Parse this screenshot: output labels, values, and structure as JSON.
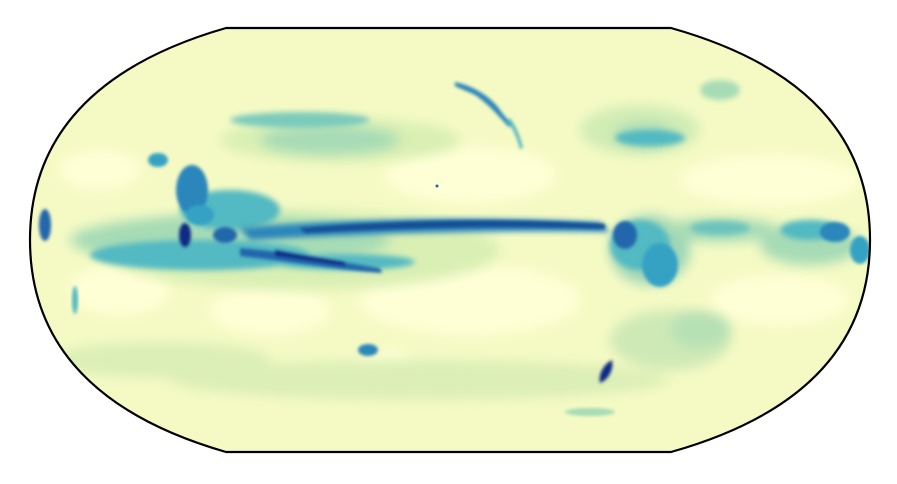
{
  "map": {
    "projection": "robinson",
    "central_longitude": 180,
    "field": "precipitation",
    "colormap": "YlGnBu",
    "colors": {
      "background": "#ffffff",
      "outline": "#000000",
      "level_0": "#ffffcc",
      "level_1": "#f3f9c0",
      "level_2": "#e3f2b4",
      "level_3": "#cbe9b6",
      "level_4": "#a6dbb6",
      "level_5": "#7ccabb",
      "level_6": "#53b9c2",
      "level_7": "#35a2c4",
      "level_8": "#2a86bb",
      "level_9": "#2166ac",
      "level_10": "#0c2c84"
    },
    "title": "",
    "colorbar": false
  }
}
